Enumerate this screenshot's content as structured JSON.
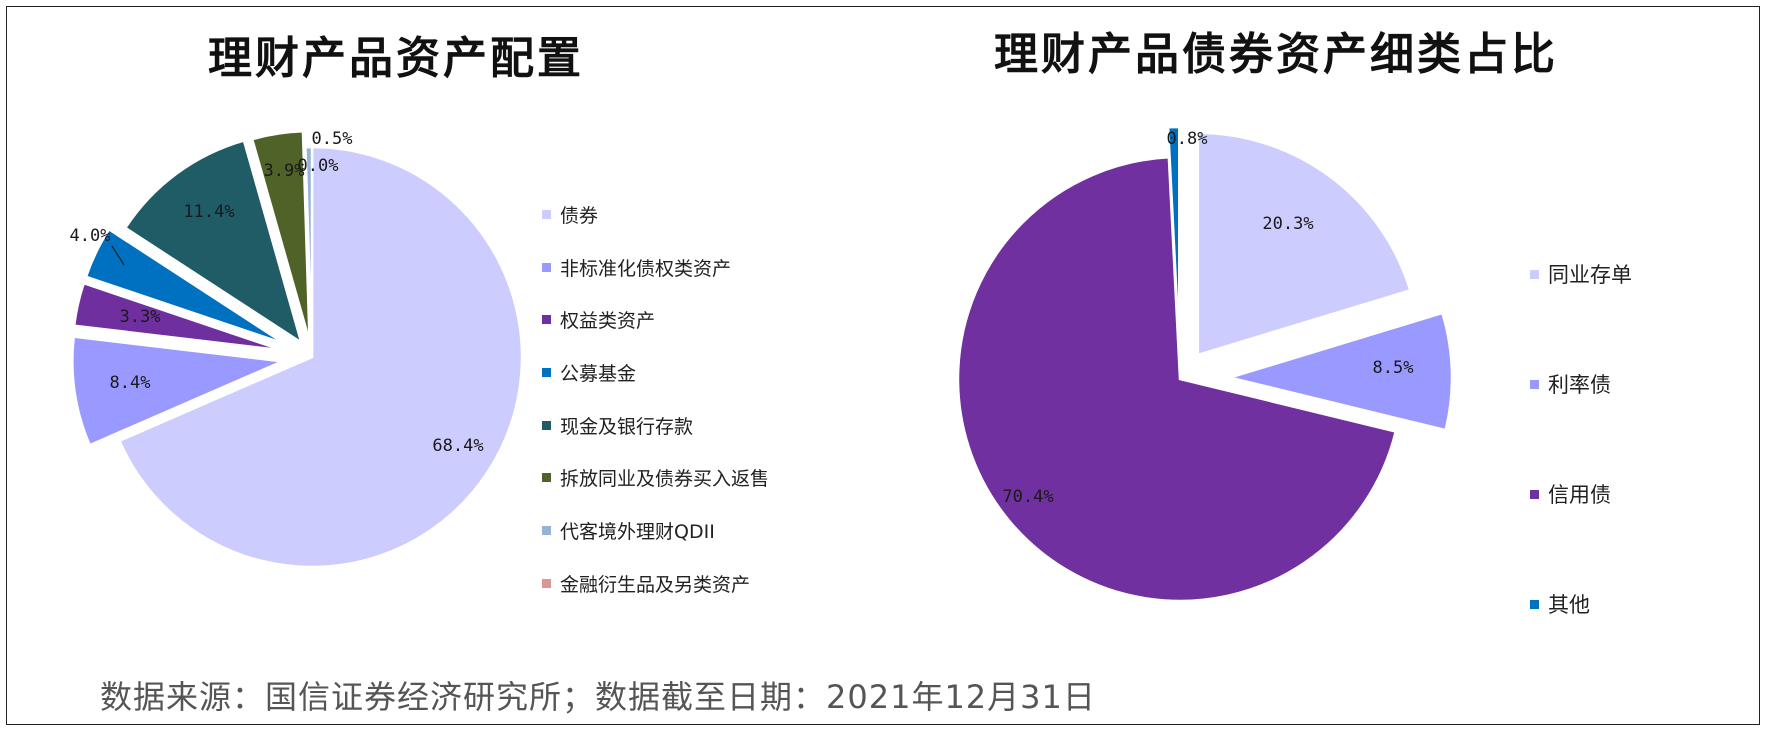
{
  "source_note": "数据来源：国信证券经济研究所；数据截至日期：2021年12月31日",
  "chart_data": [
    {
      "type": "pie",
      "title": "理财产品资产配置",
      "legend_position": "right",
      "slices": [
        {
          "label": "债券",
          "value": 68.4,
          "display": "68.4%",
          "color": "#ccccfe"
        },
        {
          "label": "非标准化债权类资产",
          "value": 8.4,
          "display": "8.4%",
          "color": "#9999ff"
        },
        {
          "label": "权益类资产",
          "value": 3.3,
          "display": "3.3%",
          "color": "#6f2f9f"
        },
        {
          "label": "公募基金",
          "value": 4.0,
          "display": "4.0%",
          "color": "#0070c0"
        },
        {
          "label": "现金及银行存款",
          "value": 11.4,
          "display": "11.4%",
          "color": "#1f5c66"
        },
        {
          "label": "拆放同业及债券买入返售",
          "value": 3.9,
          "display": "3.9%",
          "color": "#4f6228"
        },
        {
          "label": "代客境外理财QDII",
          "value": 0.5,
          "display": "0.5%",
          "color": "#95b3d7"
        },
        {
          "label": "金融衍生品及另类资产",
          "value": 0.0,
          "display": "0.0%",
          "color": "#d99694"
        }
      ]
    },
    {
      "type": "pie",
      "title": "理财产品债券资产细类占比",
      "legend_position": "right",
      "slices": [
        {
          "label": "同业存单",
          "value": 20.3,
          "display": "20.3%",
          "color": "#ccccfe"
        },
        {
          "label": "利率债",
          "value": 8.5,
          "display": "8.5%",
          "color": "#9999ff"
        },
        {
          "label": "信用债",
          "value": 70.4,
          "display": "70.4%",
          "color": "#7030a0"
        },
        {
          "label": "其他",
          "value": 0.8,
          "display": "0.8%",
          "color": "#0070c0"
        }
      ]
    }
  ]
}
